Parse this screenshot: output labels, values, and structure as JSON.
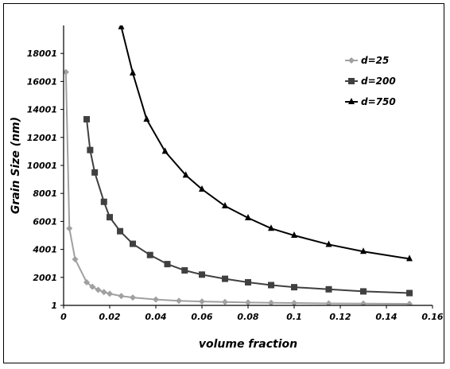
{
  "chart_data": {
    "type": "line",
    "title": "",
    "xlabel": "volume fraction",
    "ylabel": "Grain Size (nm)",
    "xlim": [
      0,
      0.16
    ],
    "ylim": [
      1,
      20001
    ],
    "x_ticks": [
      "0",
      "0.02",
      "0.04",
      "0.06",
      "0.08",
      "0.1",
      "0.12",
      "0.14",
      "0.16"
    ],
    "y_ticks": [
      "1",
      "2001",
      "4001",
      "6001",
      "8001",
      "10001",
      "12001",
      "14001",
      "16001",
      "18001"
    ],
    "x_tick_values": [
      0,
      0.02,
      0.04,
      0.06,
      0.08,
      0.1,
      0.12,
      0.14,
      0.16
    ],
    "y_tick_values": [
      1,
      2001,
      4001,
      6001,
      8001,
      10001,
      12001,
      14001,
      16001,
      18001
    ],
    "grid": false,
    "legend_placement": "top-right",
    "series": [
      {
        "name": "d=25",
        "color": "#a0a0a0",
        "marker": "diamond",
        "x": [
          0.001,
          0.0025,
          0.005,
          0.01,
          0.0125,
          0.015,
          0.0175,
          0.02,
          0.025,
          0.03,
          0.04,
          0.05,
          0.06,
          0.07,
          0.08,
          0.09,
          0.1,
          0.115,
          0.13,
          0.15
        ],
        "y": [
          16667,
          5500,
          3300,
          1650,
          1330,
          1110,
          950,
          830,
          670,
          560,
          420,
          330,
          280,
          240,
          210,
          185,
          170,
          145,
          130,
          110
        ]
      },
      {
        "name": "d=200",
        "color": "#404040",
        "marker": "square",
        "x": [
          0.01,
          0.0115,
          0.0135,
          0.0175,
          0.02,
          0.0245,
          0.03,
          0.0375,
          0.045,
          0.0525,
          0.06,
          0.07,
          0.08,
          0.09,
          0.1,
          0.115,
          0.13,
          0.15
        ],
        "y": [
          13300,
          11100,
          9500,
          7400,
          6300,
          5300,
          4400,
          3600,
          2950,
          2500,
          2200,
          1900,
          1650,
          1450,
          1300,
          1150,
          1000,
          880
        ]
      },
      {
        "name": "d=750",
        "color": "#000000",
        "marker": "triangle",
        "x": [
          0.025,
          0.03,
          0.036,
          0.044,
          0.053,
          0.06,
          0.07,
          0.08,
          0.09,
          0.1,
          0.115,
          0.13,
          0.15
        ],
        "y": [
          19900,
          16600,
          13300,
          11000,
          9300,
          8300,
          7100,
          6250,
          5500,
          5000,
          4350,
          3850,
          3330
        ]
      }
    ]
  }
}
